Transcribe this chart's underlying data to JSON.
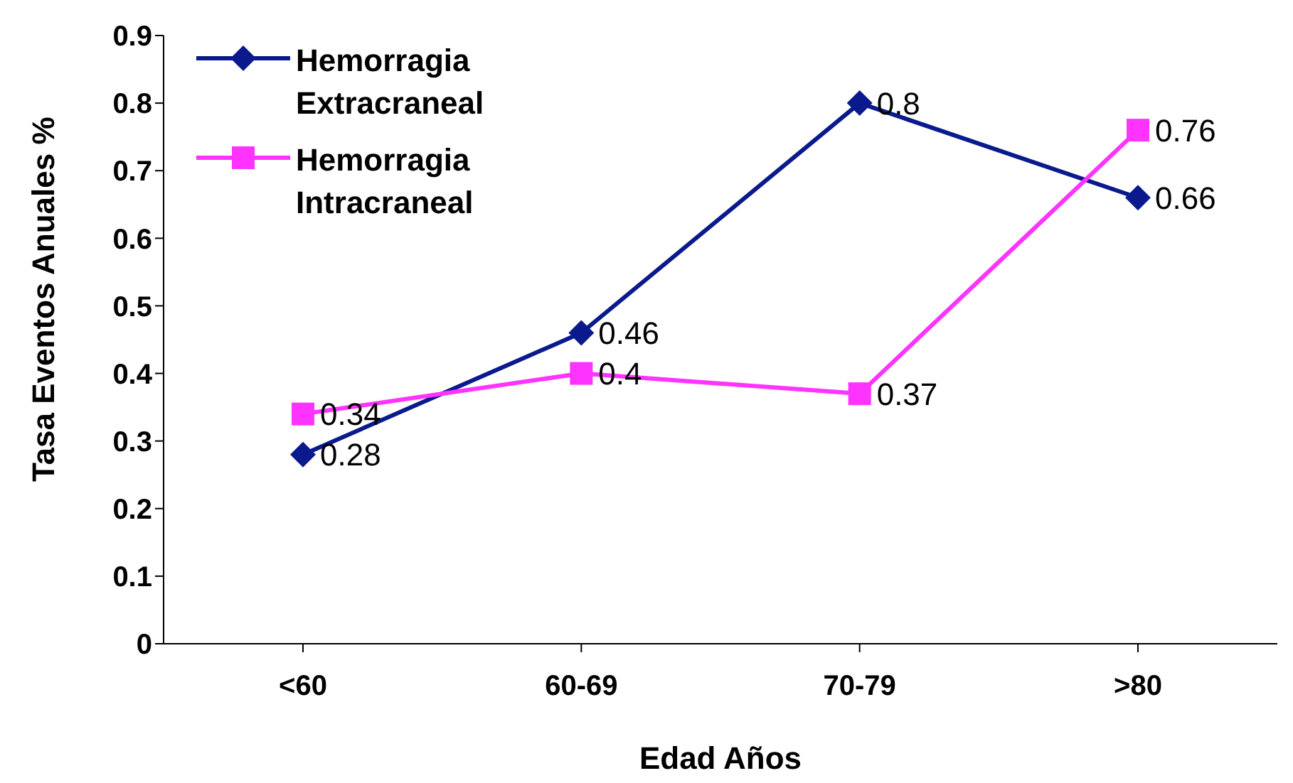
{
  "chart_data": {
    "type": "line",
    "xlabel": "Edad Años",
    "ylabel": "Tasa Eventos Anuales %",
    "categories": [
      "<60",
      "60-69",
      "70-79",
      ">80"
    ],
    "series": [
      {
        "name": "Hemorragia Extracraneal",
        "color": "#0a1a8c",
        "values": [
          0.28,
          0.46,
          0.8,
          0.66
        ],
        "marker": "diamond"
      },
      {
        "name": "Hemorragia Intracraneal",
        "color": "#ff33ff",
        "values": [
          0.34,
          0.4,
          0.37,
          0.76
        ],
        "marker": "square"
      }
    ],
    "ylim": [
      0,
      0.9
    ],
    "yticks": [
      0,
      0.1,
      0.2,
      0.3,
      0.4,
      0.5,
      0.6,
      0.7,
      0.8,
      0.9
    ],
    "grid": false,
    "legend": "top left",
    "data_labels": true,
    "line_style": "solid"
  }
}
